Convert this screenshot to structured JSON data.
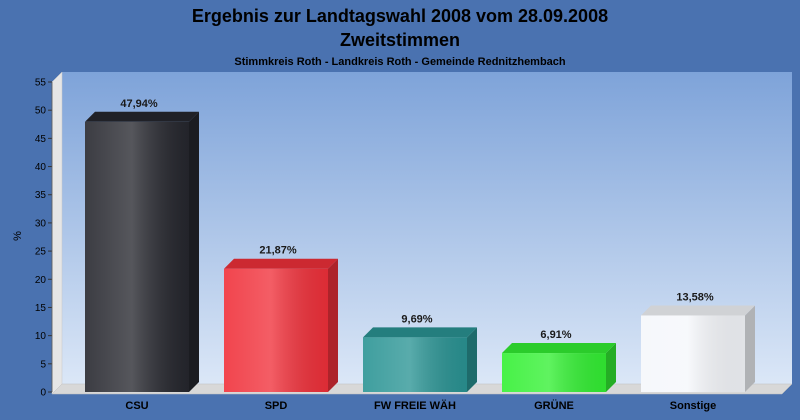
{
  "chart_data": {
    "type": "bar",
    "title": "Ergebnis zur Landtagswahl 2008 vom 28.09.2008",
    "title2": "Zweitstimmen",
    "subtitle": "Stimmkreis Roth - Landkreis Roth - Gemeinde Rednitzhembach",
    "xlabel": "",
    "ylabel": "%",
    "ylim": [
      0,
      55
    ],
    "yticks": [
      0,
      5,
      10,
      15,
      20,
      25,
      30,
      35,
      40,
      45,
      50,
      55
    ],
    "grid": false,
    "categories": [
      "CSU",
      "SPD",
      "FW FREIE WÄH",
      "GRÜNE",
      "Sonstige"
    ],
    "values": [
      47.94,
      21.87,
      9.69,
      6.91,
      13.58
    ],
    "data_labels": [
      "47,94%",
      "21,87%",
      "9,69%",
      "6,91%",
      "13,58%"
    ],
    "colors": [
      "#26272e",
      "#f0303a",
      "#2a9494",
      "#33f033",
      "#f5f7fb"
    ]
  },
  "colors": {
    "background": "#4a72b0",
    "plot_top": "#7ea3d9",
    "plot_bottom": "#dbe7f7"
  }
}
